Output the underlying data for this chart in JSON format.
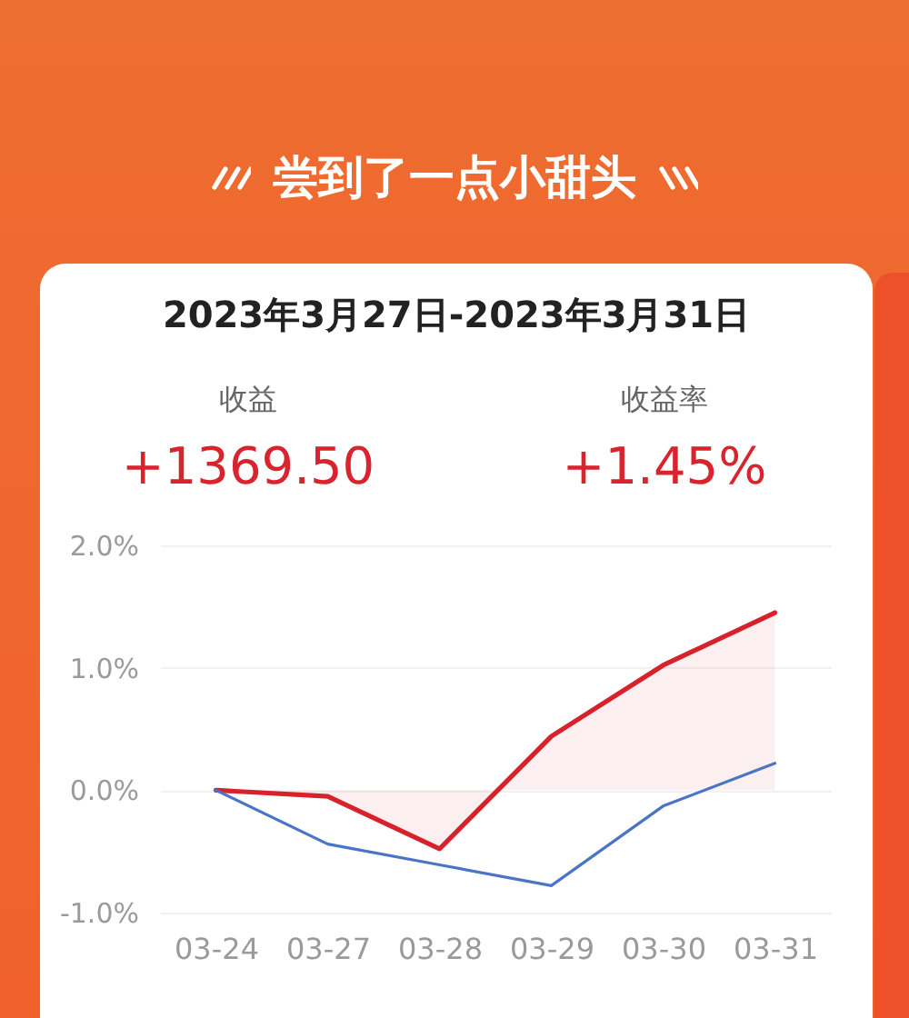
{
  "chart_data": {
    "type": "line",
    "title": "尝到了一点小甜头",
    "subtitle": "2023年3月27日-2023年3月31日",
    "annotations": [
      "收益",
      "+1369.50",
      "收益率",
      "+1.45%"
    ],
    "categories": [
      "03-24",
      "03-27",
      "03-28",
      "03-29",
      "03-30",
      "03-31"
    ],
    "series": [
      {
        "type": "area",
        "color": "#d7212b",
        "values": [
          0.0,
          -0.05,
          -0.48,
          0.44,
          1.02,
          1.45
        ]
      },
      {
        "color": "#4a74c6",
        "values": [
          0.0,
          -0.44,
          -0.61,
          -0.78,
          -0.13,
          0.22
        ]
      }
    ],
    "ylim": [
      -1,
      2
    ],
    "yticks": [
      {
        "value": -1,
        "label": "-1.0%"
      },
      {
        "value": 0,
        "label": "0.0%"
      },
      {
        "value": 1,
        "label": "1.0%"
      },
      {
        "value": 2,
        "label": "2.0%"
      }
    ],
    "grid": "y"
  }
}
